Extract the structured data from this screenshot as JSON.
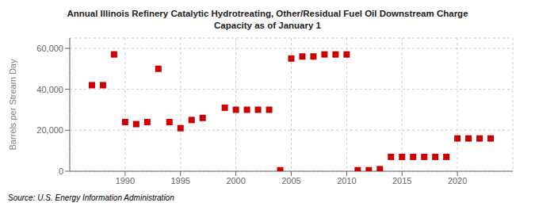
{
  "chart_data": {
    "type": "scatter",
    "title": "Annual Illinois Refinery Catalytic Hydrotreating, Other/Residual Fuel Oil Downstream Charge\nCapacity as of January 1",
    "ylabel": "Barrels per Stream Day",
    "annotations": [
      "Source: U.S. Energy Information Administration"
    ],
    "x": [
      1987,
      1988,
      1989,
      1990,
      1991,
      1992,
      1993,
      1994,
      1995,
      1996,
      1997,
      1999,
      2000,
      2001,
      2002,
      2003,
      2004,
      2005,
      2006,
      2007,
      2008,
      2009,
      2010,
      2011,
      2012,
      2013,
      2014,
      2015,
      2016,
      2017,
      2018,
      2019,
      2020,
      2021,
      2022,
      2023
    ],
    "values": [
      42000,
      42000,
      57000,
      24000,
      23000,
      24000,
      50000,
      24000,
      21000,
      25000,
      26000,
      31000,
      30000,
      30000,
      30000,
      30000,
      500,
      55000,
      56000,
      56000,
      57000,
      57000,
      57000,
      500,
      500,
      1000,
      7000,
      7000,
      7000,
      7000,
      7000,
      7000,
      16000,
      16000,
      16000,
      16000
    ],
    "color": "#cc0000",
    "marker": "square",
    "xlim": [
      1985,
      2025
    ],
    "ylim": [
      0,
      65000
    ],
    "xticks": [
      1990,
      1995,
      2000,
      2005,
      2010,
      2015,
      2020
    ],
    "yticks": [
      0,
      {
        "value": 20000,
        "label": "20,000"
      },
      {
        "value": 40000,
        "label": "40,000"
      },
      {
        "value": 60000,
        "label": "60,000"
      }
    ],
    "grid": true
  }
}
